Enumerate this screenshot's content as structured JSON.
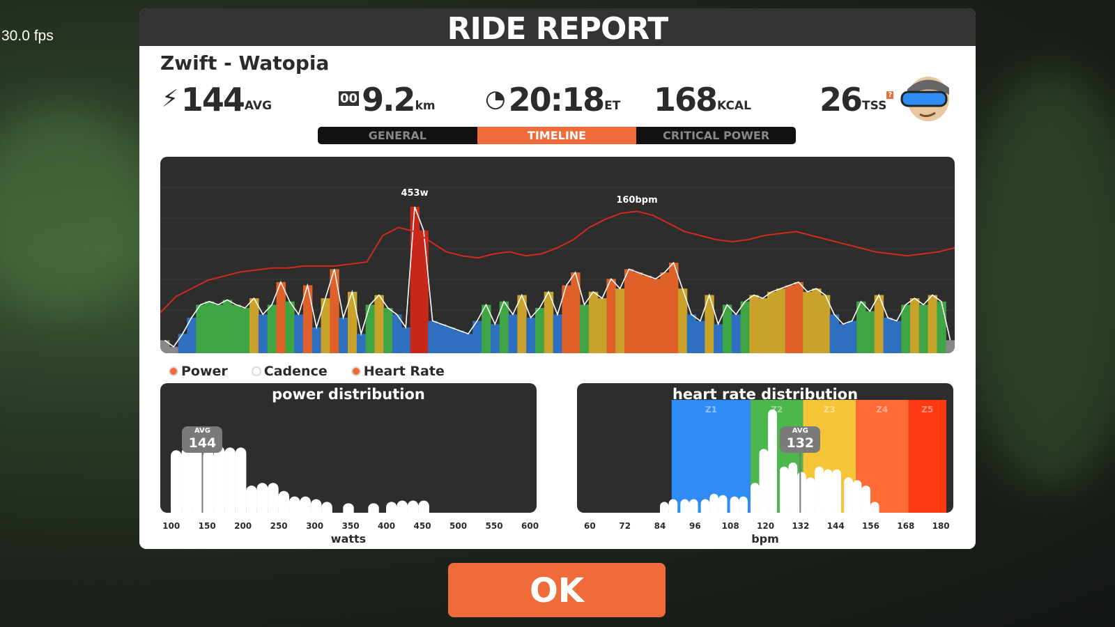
{
  "overlay": {
    "fps": "30.0 fps"
  },
  "header": {
    "title": "RIDE REPORT"
  },
  "ride": {
    "name": "Zwift - Watopia"
  },
  "stats": {
    "power": {
      "value": "144",
      "unit": "AVG",
      "icon": "lightning-icon"
    },
    "distance": {
      "value": "9.2",
      "unit": "km",
      "icon": "odometer-icon"
    },
    "time": {
      "value": "20:18",
      "unit": "ET",
      "icon": "clock-icon"
    },
    "calories": {
      "value": "168",
      "unit": "KCAL"
    },
    "tss": {
      "value": "26",
      "unit": "TSS",
      "help": "?"
    }
  },
  "tabs": [
    {
      "label": "GENERAL",
      "active": false
    },
    {
      "label": "TIMELINE",
      "active": true
    },
    {
      "label": "CRITICAL POWER",
      "active": false
    }
  ],
  "legend": [
    {
      "label": "Power",
      "checked": true
    },
    {
      "label": "Cadence",
      "checked": false
    },
    {
      "label": "Heart Rate",
      "checked": true
    }
  ],
  "colors": {
    "accent": "#ef6c3a",
    "hr_line": "#d42a1e",
    "zones": [
      "#888888",
      "#2f6fc0",
      "#3fa444",
      "#c8a22a",
      "#e0602a",
      "#c8281c"
    ],
    "hr_zones": [
      "#2f8cf5",
      "#4cb84c",
      "#f6c437",
      "#ff6a35",
      "#ff3a12"
    ]
  },
  "chart_data": [
    {
      "type": "area",
      "title": "",
      "peaks": {
        "power_label": "453w",
        "hr_label": "160bpm"
      },
      "power": [
        40,
        20,
        60,
        110,
        150,
        160,
        150,
        165,
        150,
        140,
        170,
        120,
        150,
        220,
        160,
        120,
        210,
        80,
        170,
        260,
        110,
        190,
        60,
        150,
        180,
        140,
        120,
        80,
        453,
        380,
        100,
        90,
        80,
        70,
        60,
        100,
        150,
        90,
        160,
        120,
        180,
        110,
        140,
        190,
        120,
        210,
        250,
        150,
        190,
        170,
        230,
        200,
        260,
        250,
        240,
        230,
        250,
        280,
        200,
        120,
        100,
        180,
        90,
        150,
        120,
        160,
        180,
        170,
        190,
        200,
        210,
        220,
        190,
        200,
        180,
        120,
        90,
        100,
        160,
        130,
        180,
        110,
        100,
        150,
        170,
        150,
        180,
        160,
        40
      ],
      "hr": [
        110,
        118,
        122,
        126,
        128,
        130,
        131,
        132,
        132,
        133,
        133,
        133,
        134,
        135,
        148,
        152,
        150,
        145,
        140,
        138,
        137,
        139,
        140,
        138,
        139,
        142,
        146,
        152,
        156,
        159,
        160,
        158,
        154,
        150,
        148,
        146,
        145,
        146,
        148,
        149,
        150,
        148,
        146,
        144,
        142,
        140,
        139,
        138,
        139,
        140,
        142
      ],
      "ylim_power": [
        0,
        500
      ],
      "ylim_hr": [
        90,
        180
      ]
    },
    {
      "type": "bar",
      "title": "power distribution",
      "xlabel": "watts",
      "xticks": [
        100,
        150,
        200,
        250,
        300,
        350,
        400,
        450,
        500,
        550,
        600
      ],
      "xlim": [
        95,
        600
      ],
      "bins": [
        100,
        115,
        130,
        145,
        160,
        175,
        190,
        205,
        220,
        235,
        250,
        265,
        280,
        295,
        310,
        340,
        375,
        400,
        415,
        430,
        445
      ],
      "values": [
        46,
        48,
        48,
        46,
        49,
        48,
        48,
        20,
        22,
        22,
        16,
        12,
        12,
        10,
        8,
        7,
        7,
        8,
        9,
        9,
        9
      ],
      "avg": 144,
      "avg_label": "AVG"
    },
    {
      "type": "bar",
      "title": "heart rate distribution",
      "xlabel": "bpm",
      "xticks": [
        60,
        72,
        84,
        96,
        108,
        120,
        132,
        144,
        156,
        168,
        180
      ],
      "xlim": [
        58,
        182
      ],
      "zones": [
        {
          "label": "Z1",
          "from": 88,
          "to": 115
        },
        {
          "label": "Z2",
          "from": 115,
          "to": 133
        },
        {
          "label": "Z3",
          "from": 133,
          "to": 151
        },
        {
          "label": "Z4",
          "from": 151,
          "to": 169
        },
        {
          "label": "Z5",
          "from": 169,
          "to": 182
        }
      ],
      "bins": [
        84,
        87,
        91,
        94,
        98,
        101,
        104,
        108,
        111,
        115,
        118,
        121,
        125,
        128,
        131,
        134,
        137,
        140,
        143,
        147,
        150,
        153,
        156
      ],
      "values": [
        8,
        10,
        10,
        10,
        10,
        14,
        13,
        12,
        12,
        22,
        47,
        76,
        34,
        37,
        30,
        26,
        34,
        32,
        32,
        26,
        24,
        20,
        8
      ],
      "avg": 132,
      "avg_label": "AVG"
    }
  ],
  "actions": {
    "ok": "OK"
  }
}
